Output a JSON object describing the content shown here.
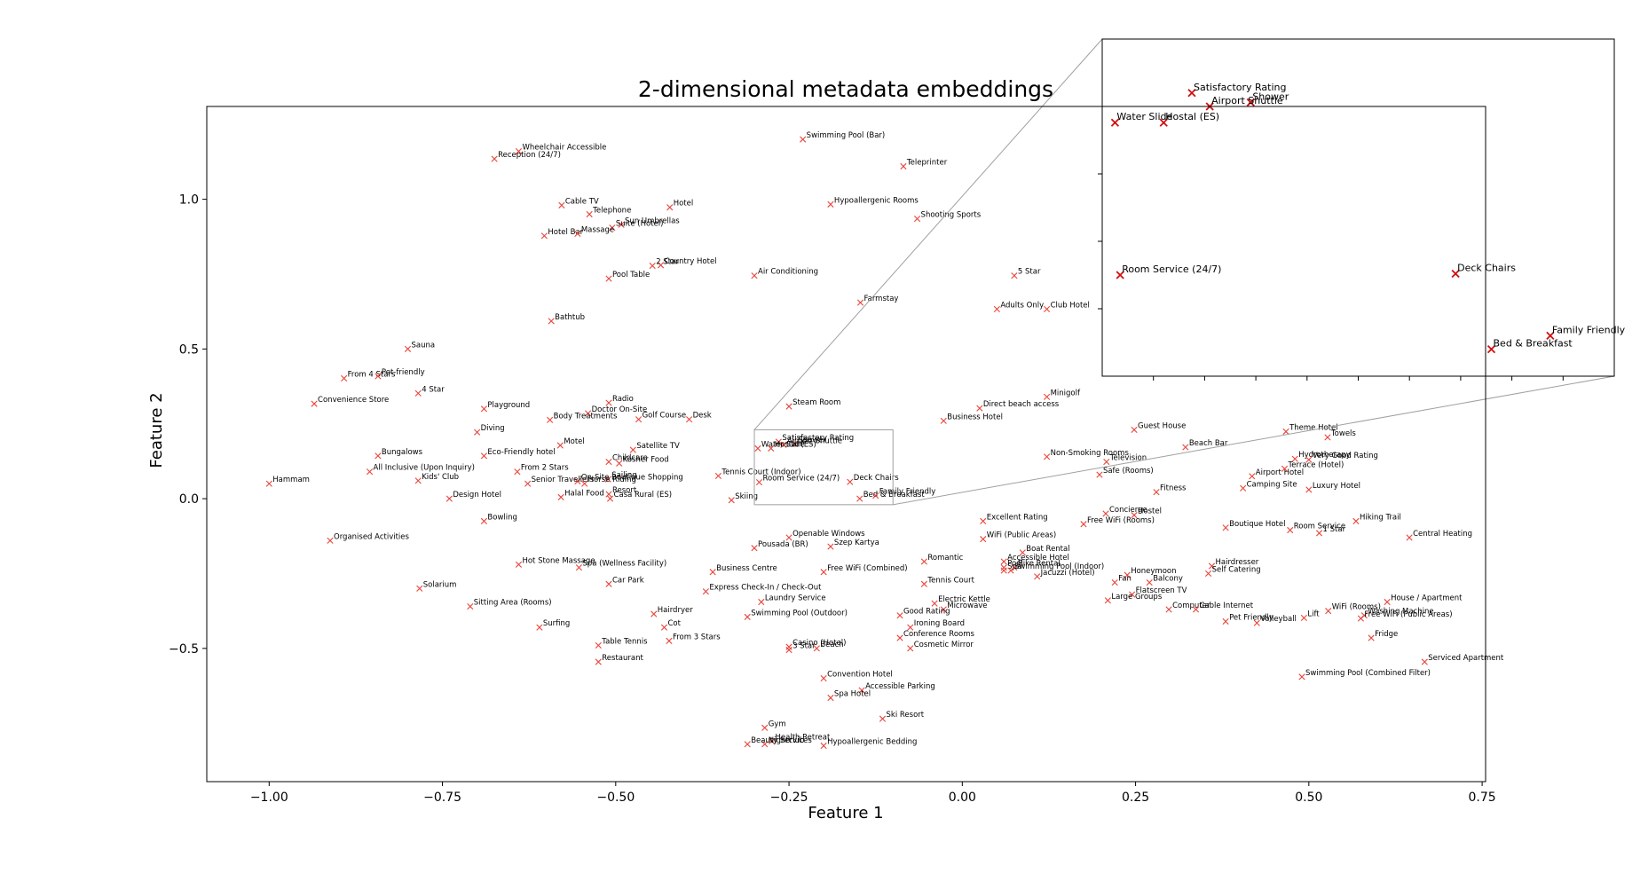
{
  "chart_data": {
    "type": "scatter",
    "title": "2-dimensional metadata embeddings",
    "xlabel": "Feature 1",
    "ylabel": "Feature 2",
    "xlim": [
      -1.09,
      0.755
    ],
    "ylim": [
      -0.945,
      1.31
    ],
    "xticks": [
      -1.0,
      -0.75,
      -0.5,
      -0.25,
      0.0,
      0.25,
      0.5,
      0.75
    ],
    "xtick_labels": [
      "−1.00",
      "−0.75",
      "−0.50",
      "−0.25",
      "0.00",
      "0.25",
      "0.50",
      "0.75"
    ],
    "yticks": [
      -0.5,
      0.0,
      0.5,
      1.0
    ],
    "ytick_labels": [
      "−0.5",
      "0.0",
      "0.5",
      "1.0"
    ],
    "marker": "x",
    "marker_color": "#e8443a",
    "inset_marker_color": "#d01010",
    "inset_box_color": "#a0a0a0",
    "grid": false,
    "points": [
      {
        "label": "Wheelchair Accessible",
        "x": -0.64,
        "y": 1.16
      },
      {
        "label": "Reception (24/7)",
        "x": -0.675,
        "y": 1.135
      },
      {
        "label": "Swimming Pool (Bar)",
        "x": -0.23,
        "y": 1.2
      },
      {
        "label": "Teleprinter",
        "x": -0.085,
        "y": 1.11
      },
      {
        "label": "Cable TV",
        "x": -0.578,
        "y": 0.98
      },
      {
        "label": "Telephone",
        "x": -0.538,
        "y": 0.95
      },
      {
        "label": "Hotel",
        "x": -0.422,
        "y": 0.973
      },
      {
        "label": "Hypoallergenic Rooms",
        "x": -0.19,
        "y": 0.983
      },
      {
        "label": "Shooting Sports",
        "x": -0.065,
        "y": 0.935
      },
      {
        "label": "Sun Umbrellas",
        "x": -0.492,
        "y": 0.915
      },
      {
        "label": "Suite (Hotel)",
        "x": -0.505,
        "y": 0.905
      },
      {
        "label": "Hotel Bar",
        "x": -0.603,
        "y": 0.878
      },
      {
        "label": "Massage",
        "x": -0.555,
        "y": 0.885
      },
      {
        "label": "Country Hotel",
        "x": -0.435,
        "y": 0.78
      },
      {
        "label": "2 Star",
        "x": -0.447,
        "y": 0.778
      },
      {
        "label": "Air Conditioning",
        "x": -0.3,
        "y": 0.745
      },
      {
        "label": "Pool Table",
        "x": -0.51,
        "y": 0.735
      },
      {
        "label": "5 Star",
        "x": 0.075,
        "y": 0.745
      },
      {
        "label": "Farmstay",
        "x": -0.147,
        "y": 0.655
      },
      {
        "label": "Adults Only",
        "x": 0.05,
        "y": 0.633
      },
      {
        "label": "Club Hotel",
        "x": 0.122,
        "y": 0.633
      },
      {
        "label": "Bathtub",
        "x": -0.593,
        "y": 0.593
      },
      {
        "label": "Sauna",
        "x": -0.8,
        "y": 0.5
      },
      {
        "label": "From 4 Stars",
        "x": -0.892,
        "y": 0.402
      },
      {
        "label": "Pet-friendly",
        "x": -0.843,
        "y": 0.409
      },
      {
        "label": "4 Star",
        "x": -0.785,
        "y": 0.352
      },
      {
        "label": "Minigolf",
        "x": 0.122,
        "y": 0.34
      },
      {
        "label": "Convenience Store",
        "x": -0.935,
        "y": 0.317
      },
      {
        "label": "Playground",
        "x": -0.69,
        "y": 0.3
      },
      {
        "label": "Radio",
        "x": -0.51,
        "y": 0.32
      },
      {
        "label": "Steam Room",
        "x": -0.25,
        "y": 0.308
      },
      {
        "label": "Direct beach access",
        "x": 0.025,
        "y": 0.302
      },
      {
        "label": "Doctor On-Site",
        "x": -0.54,
        "y": 0.285
      },
      {
        "label": "Body Treatments",
        "x": -0.595,
        "y": 0.263
      },
      {
        "label": "Golf Course",
        "x": -0.467,
        "y": 0.265
      },
      {
        "label": "Desk",
        "x": -0.394,
        "y": 0.265
      },
      {
        "label": "Business Hotel",
        "x": -0.027,
        "y": 0.26
      },
      {
        "label": "Guest House",
        "x": 0.248,
        "y": 0.23
      },
      {
        "label": "Theme Hotel",
        "x": 0.467,
        "y": 0.224
      },
      {
        "label": "Diving",
        "x": -0.7,
        "y": 0.222
      },
      {
        "label": "Towels",
        "x": 0.527,
        "y": 0.205
      },
      {
        "label": "Motel",
        "x": -0.58,
        "y": 0.178
      },
      {
        "label": "Satellite TV",
        "x": -0.475,
        "y": 0.163
      },
      {
        "label": "Beach Bar",
        "x": 0.322,
        "y": 0.172
      },
      {
        "label": "Bungalows",
        "x": -0.843,
        "y": 0.143
      },
      {
        "label": "Eco-Friendly hotel",
        "x": -0.69,
        "y": 0.143
      },
      {
        "label": "Non-Smoking Rooms",
        "x": 0.122,
        "y": 0.14
      },
      {
        "label": "Hydrotherapy",
        "x": 0.48,
        "y": 0.133
      },
      {
        "label": "Very Good Rating",
        "x": 0.5,
        "y": 0.13
      },
      {
        "label": "Television",
        "x": 0.208,
        "y": 0.123
      },
      {
        "label": "Childcare",
        "x": -0.51,
        "y": 0.123
      },
      {
        "label": "Kosher Food",
        "x": -0.495,
        "y": 0.118
      },
      {
        "label": "Safe (Rooms)",
        "x": 0.198,
        "y": 0.08
      },
      {
        "label": "Airport Hotel",
        "x": 0.418,
        "y": 0.075
      },
      {
        "label": "Terrace (Hotel)",
        "x": 0.465,
        "y": 0.1
      },
      {
        "label": "All Inclusive (Upon Inquiry)",
        "x": -0.855,
        "y": 0.09
      },
      {
        "label": "From 2 Stars",
        "x": -0.642,
        "y": 0.09
      },
      {
        "label": "Tennis Court (Indoor)",
        "x": -0.352,
        "y": 0.076
      },
      {
        "label": "Sailing",
        "x": -0.511,
        "y": 0.065
      },
      {
        "label": "Kids' Club",
        "x": -0.785,
        "y": 0.06
      },
      {
        "label": "On-Site Boutique Shopping",
        "x": -0.555,
        "y": 0.058
      },
      {
        "label": "Horse Riding",
        "x": -0.545,
        "y": 0.05
      },
      {
        "label": "Senior Travellers",
        "x": -0.627,
        "y": 0.05
      },
      {
        "label": "Hammam",
        "x": -1.0,
        "y": 0.05
      },
      {
        "label": "Camping Site",
        "x": 0.405,
        "y": 0.035
      },
      {
        "label": "Luxury Hotel",
        "x": 0.5,
        "y": 0.03
      },
      {
        "label": "Fitness",
        "x": 0.28,
        "y": 0.022
      },
      {
        "label": "Resort",
        "x": -0.51,
        "y": 0.015
      },
      {
        "label": "Halal Food",
        "x": -0.579,
        "y": 0.005
      },
      {
        "label": "Casa Rural (ES)",
        "x": -0.508,
        "y": 0.0
      },
      {
        "label": "Design Hotel",
        "x": -0.74,
        "y": 0.0
      },
      {
        "label": "Skiing",
        "x": -0.333,
        "y": -0.005
      },
      {
        "label": "Concierge",
        "x": 0.207,
        "y": -0.05
      },
      {
        "label": "Hostel",
        "x": 0.248,
        "y": -0.055
      },
      {
        "label": "Excellent Rating",
        "x": 0.03,
        "y": -0.075
      },
      {
        "label": "Bowling",
        "x": -0.69,
        "y": -0.075
      },
      {
        "label": "Free WiFi (Rooms)",
        "x": 0.175,
        "y": -0.085
      },
      {
        "label": "Hiking Trail",
        "x": 0.568,
        "y": -0.075
      },
      {
        "label": "Boutique Hotel",
        "x": 0.38,
        "y": -0.097
      },
      {
        "label": "Room Service",
        "x": 0.473,
        "y": -0.105
      },
      {
        "label": "1 Star",
        "x": 0.515,
        "y": -0.115
      },
      {
        "label": "Central Heating",
        "x": 0.645,
        "y": -0.13
      },
      {
        "label": "Organised Activities",
        "x": -0.912,
        "y": -0.14
      },
      {
        "label": "Openable Windows",
        "x": -0.25,
        "y": -0.13
      },
      {
        "label": "WiFi (Public Areas)",
        "x": 0.03,
        "y": -0.135
      },
      {
        "label": "Pousada (BR)",
        "x": -0.3,
        "y": -0.165
      },
      {
        "label": "Szep Kartya",
        "x": -0.19,
        "y": -0.16
      },
      {
        "label": "Boat Rental",
        "x": 0.087,
        "y": -0.18
      },
      {
        "label": "Romantic",
        "x": -0.055,
        "y": -0.21
      },
      {
        "label": "Accessible Hotel",
        "x": 0.06,
        "y": -0.21
      },
      {
        "label": "Bike Rental",
        "x": 0.075,
        "y": -0.23
      },
      {
        "label": "Pool",
        "x": 0.06,
        "y": -0.23
      },
      {
        "label": "Spa",
        "x": 0.06,
        "y": -0.24
      },
      {
        "label": "Swimming Pool (Indoor)",
        "x": 0.07,
        "y": -0.24
      },
      {
        "label": "Jacuzzi (Hotel)",
        "x": 0.108,
        "y": -0.26
      },
      {
        "label": "Hot Stone Massage",
        "x": -0.64,
        "y": -0.22
      },
      {
        "label": "Spa (Wellness Facility)",
        "x": -0.553,
        "y": -0.23
      },
      {
        "label": "Hairdresser",
        "x": 0.36,
        "y": -0.225
      },
      {
        "label": "Self Catering",
        "x": 0.355,
        "y": -0.25
      },
      {
        "label": "Business Centre",
        "x": -0.36,
        "y": -0.245
      },
      {
        "label": "Free WiFi (Combined)",
        "x": -0.2,
        "y": -0.245
      },
      {
        "label": "Honeymoon",
        "x": 0.238,
        "y": -0.255
      },
      {
        "label": "Car Park",
        "x": -0.51,
        "y": -0.285
      },
      {
        "label": "Fan",
        "x": 0.22,
        "y": -0.28
      },
      {
        "label": "Balcony",
        "x": 0.27,
        "y": -0.28
      },
      {
        "label": "Tennis Court",
        "x": -0.055,
        "y": -0.285
      },
      {
        "label": "Solarium",
        "x": -0.783,
        "y": -0.3
      },
      {
        "label": "Express Check-In / Check-Out",
        "x": -0.37,
        "y": -0.31
      },
      {
        "label": "Flatscreen TV",
        "x": 0.245,
        "y": -0.32
      },
      {
        "label": "Large Groups",
        "x": 0.21,
        "y": -0.34
      },
      {
        "label": "Laundry Service",
        "x": -0.29,
        "y": -0.345
      },
      {
        "label": "House / Apartment",
        "x": 0.613,
        "y": -0.345
      },
      {
        "label": "Electric Kettle",
        "x": -0.04,
        "y": -0.35
      },
      {
        "label": "Sitting Area (Rooms)",
        "x": -0.71,
        "y": -0.36
      },
      {
        "label": "Microwave",
        "x": -0.027,
        "y": -0.37
      },
      {
        "label": "Computer",
        "x": 0.298,
        "y": -0.37
      },
      {
        "label": "Cable Internet",
        "x": 0.337,
        "y": -0.37
      },
      {
        "label": "WiFi (Rooms)",
        "x": 0.528,
        "y": -0.375
      },
      {
        "label": "Hairdryer",
        "x": -0.445,
        "y": -0.385
      },
      {
        "label": "Swimming Pool (Outdoor)",
        "x": -0.31,
        "y": -0.395
      },
      {
        "label": "Good Rating",
        "x": -0.09,
        "y": -0.39
      },
      {
        "label": "Washing Machine",
        "x": 0.58,
        "y": -0.39
      },
      {
        "label": "Free WiFi (Public Areas)",
        "x": 0.575,
        "y": -0.4
      },
      {
        "label": "Lift",
        "x": 0.493,
        "y": -0.398
      },
      {
        "label": "Pet Friendly",
        "x": 0.38,
        "y": -0.41
      },
      {
        "label": "Volleyball",
        "x": 0.425,
        "y": -0.415
      },
      {
        "label": "Surfing",
        "x": -0.61,
        "y": -0.43
      },
      {
        "label": "Cot",
        "x": -0.43,
        "y": -0.43
      },
      {
        "label": "Ironing Board",
        "x": -0.075,
        "y": -0.43
      },
      {
        "label": "Conference Rooms",
        "x": -0.09,
        "y": -0.465
      },
      {
        "label": "Fridge",
        "x": 0.59,
        "y": -0.465
      },
      {
        "label": "From 3 Stars",
        "x": -0.423,
        "y": -0.475
      },
      {
        "label": "Table Tennis",
        "x": -0.525,
        "y": -0.49
      },
      {
        "label": "Cosmetic Mirror",
        "x": -0.075,
        "y": -0.5
      },
      {
        "label": "Casino (Hotel)",
        "x": -0.25,
        "y": -0.495
      },
      {
        "label": "3 Star",
        "x": -0.25,
        "y": -0.505
      },
      {
        "label": "Beach",
        "x": -0.21,
        "y": -0.5
      },
      {
        "label": "Restaurant",
        "x": -0.525,
        "y": -0.545
      },
      {
        "label": "Serviced Apartment",
        "x": 0.667,
        "y": -0.545
      },
      {
        "label": "Swimming Pool (Combined Filter)",
        "x": 0.49,
        "y": -0.595
      },
      {
        "label": "Convention Hotel",
        "x": -0.2,
        "y": -0.6
      },
      {
        "label": "Accessible Parking",
        "x": -0.145,
        "y": -0.64
      },
      {
        "label": "Spa Hotel",
        "x": -0.19,
        "y": -0.665
      },
      {
        "label": "Ski Resort",
        "x": -0.115,
        "y": -0.735
      },
      {
        "label": "Gym",
        "x": -0.285,
        "y": -0.765
      },
      {
        "label": "Health Retreat",
        "x": -0.275,
        "y": -0.81
      },
      {
        "label": "Nightclub",
        "x": -0.285,
        "y": -0.82
      },
      {
        "label": "Beauty Services",
        "x": -0.31,
        "y": -0.82
      },
      {
        "label": "Hypoallergenic Bedding",
        "x": -0.2,
        "y": -0.825
      },
      {
        "label": "Satisfactory Rating",
        "x": -0.265,
        "y": 0.19
      },
      {
        "label": "Shower",
        "x": -0.242,
        "y": 0.183
      },
      {
        "label": "Airport Shuttle",
        "x": -0.258,
        "y": 0.18
      },
      {
        "label": "Water Slide",
        "x": -0.295,
        "y": 0.168
      },
      {
        "label": "Hostal (ES)",
        "x": -0.276,
        "y": 0.168
      },
      {
        "label": "Room Service (24/7)",
        "x": -0.293,
        "y": 0.055
      },
      {
        "label": "Deck Chairs",
        "x": -0.162,
        "y": 0.056
      },
      {
        "label": "Bed & Breakfast",
        "x": -0.148,
        "y": 0.0
      },
      {
        "label": "Family Friendly",
        "x": -0.125,
        "y": 0.01
      }
    ],
    "inset": {
      "xlim": [
        -0.3,
        -0.1
      ],
      "ylim": [
        -0.02,
        0.23
      ],
      "points": [
        {
          "label": "Satisfactory Rating",
          "x": -0.265,
          "y": 0.19
        },
        {
          "label": "Shower",
          "x": -0.242,
          "y": 0.183
        },
        {
          "label": "Airport Shuttle",
          "x": -0.258,
          "y": 0.18
        },
        {
          "label": "Water Slide",
          "x": -0.295,
          "y": 0.168
        },
        {
          "label": "Hostal (ES)",
          "x": -0.276,
          "y": 0.168
        },
        {
          "label": "Room Service (24/7)",
          "x": -0.293,
          "y": 0.055
        },
        {
          "label": "Deck Chairs",
          "x": -0.162,
          "y": 0.056
        },
        {
          "label": "Bed & Breakfast",
          "x": -0.148,
          "y": 0.0
        },
        {
          "label": "Family Friendly",
          "x": -0.125,
          "y": 0.01
        }
      ]
    }
  }
}
